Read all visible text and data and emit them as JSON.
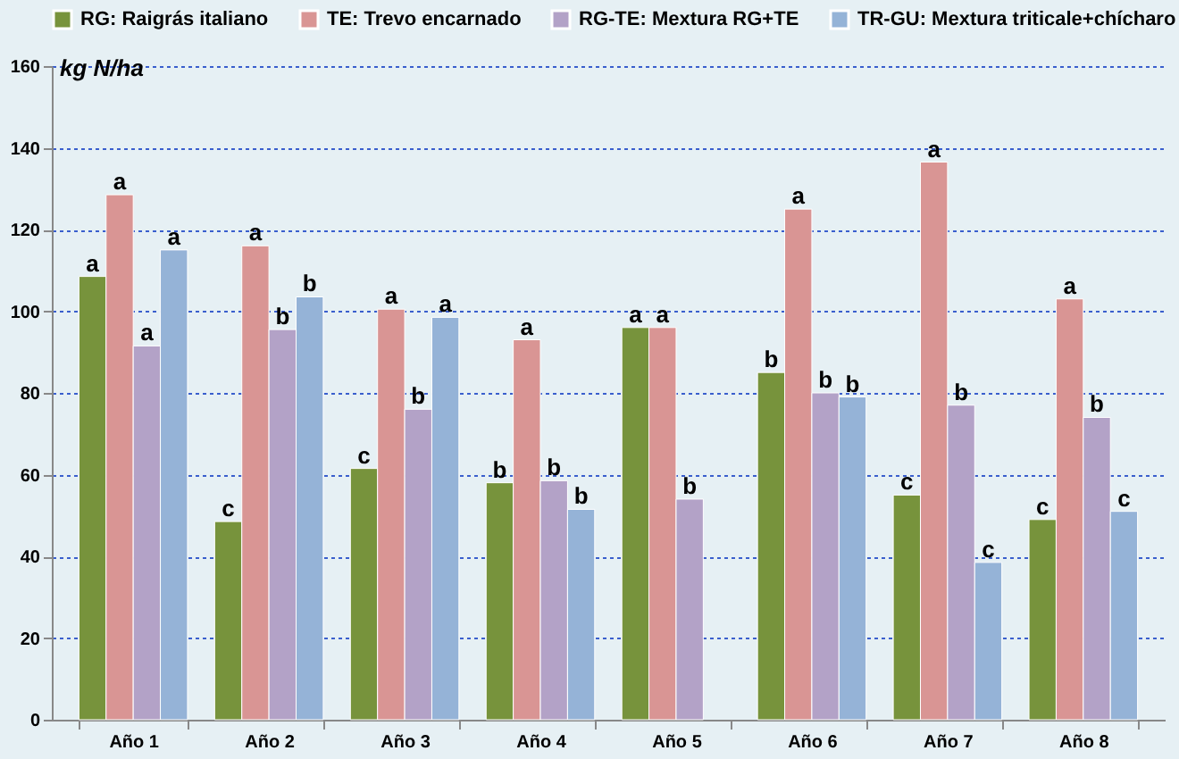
{
  "chart_data": {
    "type": "bar",
    "ylabel": "kg N/ha",
    "categories": [
      "Año 1",
      "Año 2",
      "Año 3",
      "Año 4",
      "Año 5",
      "Año 6",
      "Año 7",
      "Año 8"
    ],
    "series": [
      {
        "name": "RG: Raigrás italiano",
        "color": "#77933c",
        "values": [
          108.5,
          48.5,
          61.5,
          58,
          96,
          85,
          55,
          49
        ],
        "value_labels": [
          "a",
          "c",
          "c",
          "b",
          "a",
          "b",
          "c",
          "c"
        ]
      },
      {
        "name": "TE: Trevo encarnado",
        "color": "#d99594",
        "values": [
          128.5,
          116,
          100.5,
          93,
          96,
          125,
          136.5,
          103
        ],
        "value_labels": [
          "a",
          "a",
          "a",
          "a",
          "a",
          "a",
          "a",
          "a"
        ]
      },
      {
        "name": "RG-TE: Mextura RG+TE",
        "color": "#b3a2c7",
        "values": [
          91.5,
          95.5,
          76,
          58.5,
          54,
          80,
          77,
          74
        ],
        "value_labels": [
          "a",
          "b",
          "b",
          "b",
          "b",
          "b",
          "b",
          "b"
        ]
      },
      {
        "name": "TR-GU: Mextura triticale+chícharo",
        "color": "#95b3d7",
        "values": [
          115,
          103.5,
          98.5,
          51.5,
          null,
          79,
          38.5,
          51
        ],
        "value_labels": [
          "a",
          "b",
          "a",
          "b",
          null,
          "b",
          "c",
          "c"
        ]
      }
    ],
    "ylim": [
      0,
      160
    ],
    "yticks": [
      0,
      20,
      40,
      60,
      80,
      100,
      120,
      140,
      160
    ],
    "grid": "y",
    "legend": "top"
  }
}
